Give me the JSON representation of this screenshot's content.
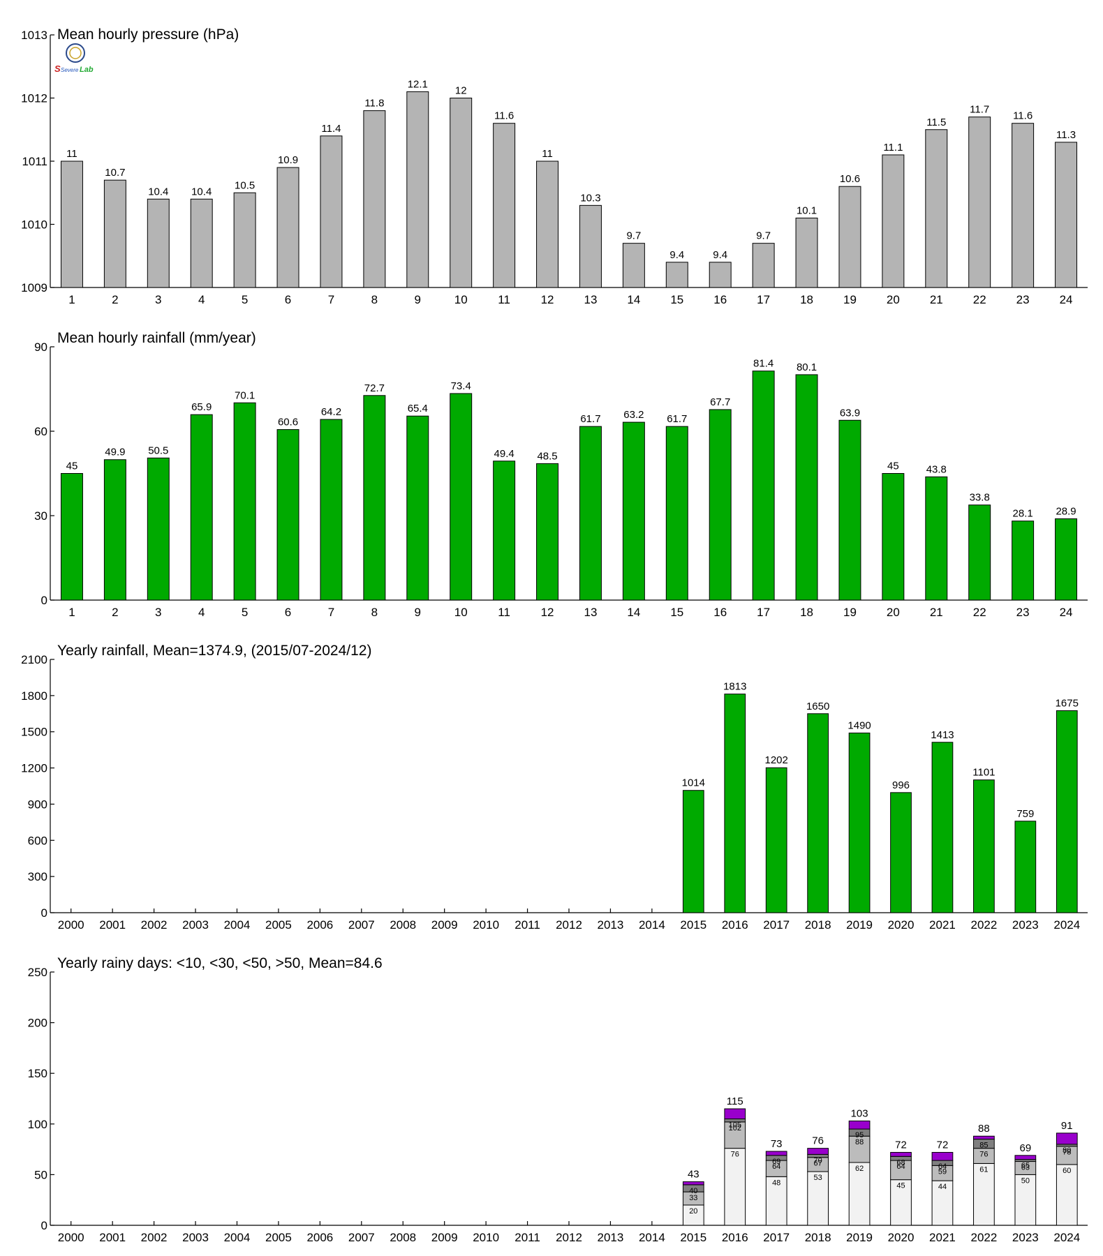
{
  "logo": {
    "text_top": "S",
    "text_mid": "Severe",
    "text_right": "Lab",
    "icon": "seal-icon"
  },
  "colors": {
    "pressure_bar": "#b4b4b4",
    "rain_bar": "#00aa00",
    "days_lt10": "#f2f2f2",
    "days_lt30": "#bcbcbc",
    "days_lt50": "#808080",
    "days_gt50": "#9900cc"
  },
  "chart_data": [
    {
      "id": "pressure",
      "type": "bar",
      "title": "Mean hourly pressure (hPa)",
      "xlabel": "",
      "ylabel": "",
      "categories": [
        "1",
        "2",
        "3",
        "4",
        "5",
        "6",
        "7",
        "8",
        "9",
        "10",
        "11",
        "12",
        "13",
        "14",
        "15",
        "16",
        "17",
        "18",
        "19",
        "20",
        "21",
        "22",
        "23",
        "24"
      ],
      "values": [
        1011.0,
        1010.7,
        1010.4,
        1010.4,
        1010.5,
        1010.9,
        1011.4,
        1011.8,
        1012.1,
        1012.0,
        1011.6,
        1011.0,
        1010.3,
        1009.7,
        1009.4,
        1009.4,
        1009.7,
        1010.1,
        1010.6,
        1011.1,
        1011.5,
        1011.7,
        1011.6,
        1011.3
      ],
      "data_labels": [
        "11",
        "10.7",
        "10.4",
        "10.4",
        "10.5",
        "10.9",
        "11.4",
        "11.8",
        "12.1",
        "12",
        "11.6",
        "11",
        "10.3",
        "9.7",
        "9.4",
        "9.4",
        "9.7",
        "10.1",
        "10.6",
        "11.1",
        "11.5",
        "11.7",
        "11.6",
        "11.3"
      ],
      "ylim": [
        1009,
        1013
      ],
      "yticks": [
        "1009",
        "1010",
        "1011",
        "1012",
        "1013"
      ],
      "grid": false
    },
    {
      "id": "hourly_rain",
      "type": "bar",
      "title": "Mean hourly rainfall (mm/year)",
      "xlabel": "",
      "ylabel": "",
      "categories": [
        "1",
        "2",
        "3",
        "4",
        "5",
        "6",
        "7",
        "8",
        "9",
        "10",
        "11",
        "12",
        "13",
        "14",
        "15",
        "16",
        "17",
        "18",
        "19",
        "20",
        "21",
        "22",
        "23",
        "24"
      ],
      "values": [
        45,
        49.9,
        50.5,
        65.9,
        70.1,
        60.6,
        64.2,
        72.7,
        65.4,
        73.4,
        49.4,
        48.5,
        61.7,
        63.2,
        61.7,
        67.7,
        81.4,
        80.1,
        63.9,
        45,
        43.8,
        33.8,
        28.1,
        28.9
      ],
      "data_labels": [
        "45",
        "49.9",
        "50.5",
        "65.9",
        "70.1",
        "60.6",
        "64.2",
        "72.7",
        "65.4",
        "73.4",
        "49.4",
        "48.5",
        "61.7",
        "63.2",
        "61.7",
        "67.7",
        "81.4",
        "80.1",
        "63.9",
        "45",
        "43.8",
        "33.8",
        "28.1",
        "28.9"
      ],
      "ylim": [
        0,
        90
      ],
      "yticks": [
        "0",
        "30",
        "60",
        "90"
      ],
      "grid": false
    },
    {
      "id": "yearly_rain",
      "type": "bar",
      "title": "Yearly rainfall, Mean=1374.9, (2015/07-2024/12)",
      "xlabel": "",
      "ylabel": "",
      "categories": [
        "2000",
        "2001",
        "2002",
        "2003",
        "2004",
        "2005",
        "2006",
        "2007",
        "2008",
        "2009",
        "2010",
        "2011",
        "2012",
        "2013",
        "2014",
        "2015",
        "2016",
        "2017",
        "2018",
        "2019",
        "2020",
        "2021",
        "2022",
        "2023",
        "2024"
      ],
      "values": [
        null,
        null,
        null,
        null,
        null,
        null,
        null,
        null,
        null,
        null,
        null,
        null,
        null,
        null,
        null,
        1014,
        1813,
        1202,
        1650,
        1490,
        996,
        1413,
        1101,
        759,
        1675
      ],
      "data_labels": [
        "",
        "",
        "",
        "",
        "",
        "",
        "",
        "",
        "",
        "",
        "",
        "",
        "",
        "",
        "",
        "1014",
        "1813",
        "1202",
        "1650",
        "1490",
        "996",
        "1413",
        "1101",
        "759",
        "1675"
      ],
      "ylim": [
        0,
        2100
      ],
      "yticks": [
        "0",
        "300",
        "600",
        "900",
        "1200",
        "1500",
        "1800",
        "2100"
      ],
      "grid": false
    },
    {
      "id": "rainy_days",
      "type": "bar",
      "stacked": true,
      "title": "Yearly rainy days: <10, <30, <50, >50, Mean=84.6",
      "xlabel": "",
      "ylabel": "",
      "categories": [
        "2000",
        "2001",
        "2002",
        "2003",
        "2004",
        "2005",
        "2006",
        "2007",
        "2008",
        "2009",
        "2010",
        "2011",
        "2012",
        "2013",
        "2014",
        "2015",
        "2016",
        "2017",
        "2018",
        "2019",
        "2020",
        "2021",
        "2022",
        "2023",
        "2024"
      ],
      "cumulative": {
        "lt10": [
          null,
          null,
          null,
          null,
          null,
          null,
          null,
          null,
          null,
          null,
          null,
          null,
          null,
          null,
          null,
          20,
          76,
          48,
          53,
          62,
          45,
          44,
          61,
          50,
          60
        ],
        "lt30": [
          null,
          null,
          null,
          null,
          null,
          null,
          null,
          null,
          null,
          null,
          null,
          null,
          null,
          null,
          null,
          33,
          102,
          64,
          67,
          88,
          64,
          59,
          76,
          63,
          78
        ],
        "lt50": [
          null,
          null,
          null,
          null,
          null,
          null,
          null,
          null,
          null,
          null,
          null,
          null,
          null,
          null,
          null,
          40,
          105,
          69,
          70,
          95,
          68,
          64,
          85,
          65,
          80
        ],
        "total": [
          null,
          null,
          null,
          null,
          null,
          null,
          null,
          null,
          null,
          null,
          null,
          null,
          null,
          null,
          null,
          43,
          115,
          73,
          76,
          103,
          72,
          72,
          88,
          69,
          91
        ]
      },
      "labels": {
        "lt10": [
          "",
          "",
          "",
          "",
          "",
          "",
          "",
          "",
          "",
          "",
          "",
          "",
          "",
          "",
          "",
          "20",
          "76",
          "48",
          "53",
          "62",
          "45",
          "44",
          "61",
          "50",
          "60"
        ],
        "lt30": [
          "",
          "",
          "",
          "",
          "",
          "",
          "",
          "",
          "",
          "",
          "",
          "",
          "",
          "",
          "",
          "33",
          "102",
          "64",
          "67",
          "88",
          "64",
          "59",
          "76",
          "63",
          "78"
        ],
        "lt50": [
          "",
          "",
          "",
          "",
          "",
          "",
          "",
          "",
          "",
          "",
          "",
          "",
          "",
          "",
          "",
          "40",
          "105",
          "69",
          "70",
          "95",
          "68",
          "64",
          "85",
          "65",
          "80"
        ],
        "total": [
          "",
          "",
          "",
          "",
          "",
          "",
          "",
          "",
          "",
          "",
          "",
          "",
          "",
          "",
          "",
          "43",
          "115",
          "73",
          "76",
          "103",
          "72",
          "72",
          "88",
          "69",
          "91"
        ]
      },
      "ylim": [
        0,
        250
      ],
      "yticks": [
        "0",
        "50",
        "100",
        "150",
        "200",
        "250"
      ],
      "grid": false
    }
  ]
}
